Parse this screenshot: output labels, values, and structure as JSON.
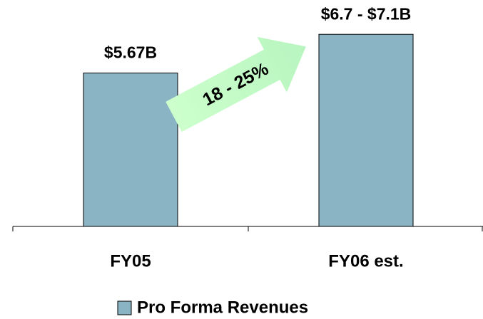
{
  "chart_data": {
    "type": "bar",
    "categories": [
      "FY05",
      "FY06 est."
    ],
    "series": [
      {
        "name": "Pro Forma Revenues",
        "color": "#8ab4c4",
        "values": [
          5.67,
          7.1
        ]
      }
    ],
    "value_labels": [
      "$5.67B",
      "$6.7 - $7.1B"
    ],
    "annotation": "18 - 25%",
    "ylim": [
      0,
      8
    ]
  }
}
